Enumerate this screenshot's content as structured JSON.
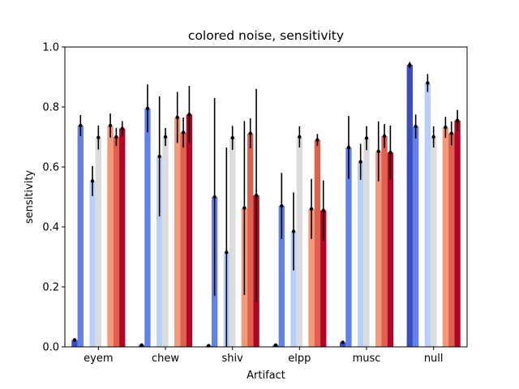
{
  "chart_data": {
    "type": "bar",
    "title": "colored noise, sensitivity",
    "xlabel": "Artifact",
    "ylabel": "sensitivity",
    "ylim": [
      0,
      1.0
    ],
    "yticks": [
      "0.0",
      "0.2",
      "0.4",
      "0.6",
      "0.8",
      "1.0"
    ],
    "grid": false,
    "legend": "none",
    "categories": [
      "eyem",
      "chew",
      "shiv",
      "elpp",
      "musc",
      "null"
    ],
    "series_colors": [
      "#3b4cc0",
      "#6282ea",
      "#8db0fe",
      "#b8d0f9",
      "#dddcdc",
      "#f4c5ad",
      "#f49a7b",
      "#de604d",
      "#b40426"
    ],
    "series": [
      {
        "values": [
          0.023,
          0.006,
          0.004,
          0.006,
          0.015,
          0.94
        ],
        "errors": [
          0.005,
          0.005,
          0.004,
          0.004,
          0.004,
          0.01
        ]
      },
      {
        "values": [
          0.738,
          0.795,
          0.5,
          0.47,
          0.665,
          0.735
        ],
        "errors": [
          0.035,
          0.08,
          0.33,
          0.11,
          0.105,
          0.04
        ]
      },
      {
        "values": [
          0.553,
          0.635,
          0.315,
          0.385,
          0.617,
          0.88
        ],
        "errors": [
          0.05,
          0.2,
          0.35,
          0.13,
          0.06,
          0.03
        ]
      },
      {
        "values": [
          0.698,
          0.7,
          0.697,
          0.7,
          0.696,
          0.7
        ],
        "errors": [
          0.04,
          0.03,
          0.04,
          0.035,
          0.04,
          0.035
        ]
      },
      {
        "values": [
          0.738,
          0.765,
          0.463,
          0.46,
          0.652,
          0.732
        ],
        "errors": [
          0.04,
          0.085,
          0.29,
          0.1,
          0.1,
          0.035
        ]
      },
      {
        "values": [
          0.7,
          0.715,
          0.712,
          0.69,
          0.703,
          0.712
        ],
        "errors": [
          0.03,
          0.05,
          0.05,
          0.02,
          0.04,
          0.04
        ]
      },
      {
        "values": [
          0.728,
          0.775,
          0.505,
          0.455,
          0.648,
          0.755
        ],
        "errors": [
          0.025,
          0.095,
          0.355,
          0.1,
          0.09,
          0.035
        ]
      }
    ],
    "series_color_index": [
      0,
      1,
      3,
      4,
      6,
      7,
      8
    ]
  }
}
